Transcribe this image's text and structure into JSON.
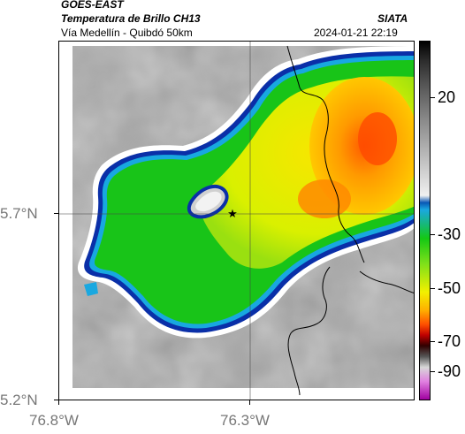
{
  "header": {
    "satellite": "GOES-EAST",
    "product": "Temperatura de Brillo CH13",
    "region": "Vía Medellín - Quibdó 50km",
    "agency": "SIATA",
    "datetime": "2024-01-21 22:19"
  },
  "colorbar": {
    "labels": [
      "20",
      "-30",
      "-50",
      "-70",
      "-90"
    ]
  },
  "axes": {
    "lat_labels": [
      "5.7°N",
      "5.2°N"
    ],
    "lon_labels": [
      "76.8°W",
      "76.3°W"
    ]
  },
  "map": {
    "marker_icon": "star-icon",
    "colors": {
      "warm_gray": "#a8a8a8",
      "cold_ring": "#0a2fa8",
      "cloud_green": "#18c418",
      "cloud_yellow": "#f2f000",
      "core_orange": "#ff7a00"
    }
  }
}
